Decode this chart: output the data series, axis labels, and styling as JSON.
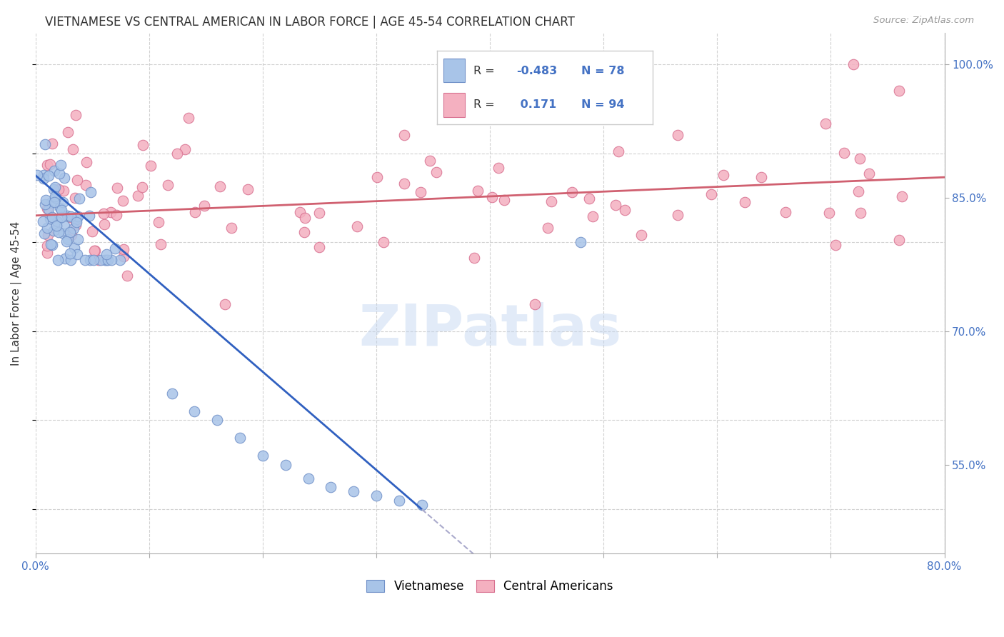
{
  "title": "VIETNAMESE VS CENTRAL AMERICAN IN LABOR FORCE | AGE 45-54 CORRELATION CHART",
  "source": "Source: ZipAtlas.com",
  "ylabel": "In Labor Force | Age 45-54",
  "xlim": [
    0.0,
    0.8
  ],
  "ylim": [
    0.45,
    1.035
  ],
  "grid_color": "#cccccc",
  "watermark": "ZIPatlas",
  "legend_R_viet": "-0.483",
  "legend_N_viet": "78",
  "legend_R_central": "0.171",
  "legend_N_central": "94",
  "viet_color": "#A8C4E8",
  "viet_edge_color": "#7090C8",
  "central_color": "#F4B0C0",
  "central_edge_color": "#D87090",
  "viet_line_color": "#3060C0",
  "central_line_color": "#D06070",
  "extend_line_color": "#aaaacc",
  "background_color": "#ffffff",
  "title_fontsize": 12,
  "axis_label_fontsize": 11,
  "tick_fontsize": 11,
  "tick_color": "#4472c4",
  "label_color": "#333333"
}
